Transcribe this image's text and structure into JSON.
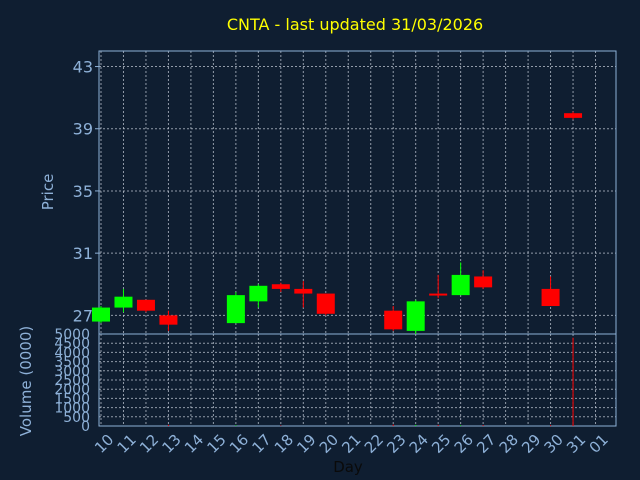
{
  "chart_data": {
    "type": "candlestick",
    "title": "CNTA - last updated 31/03/2026",
    "colors": {
      "background": "#0f1e31",
      "up": "#00ff00",
      "down": "#ff0000",
      "title": "#ffff00",
      "axis_text": "#8eb1d8",
      "frame": "#8eb1d8",
      "grid": "#c8d0dc"
    },
    "price_panel": {
      "ylabel": "Price",
      "ylim": [
        25.8,
        44.0
      ],
      "yticks": [
        27,
        31,
        35,
        39,
        43
      ]
    },
    "volume_panel": {
      "ylabel": "Volume (0000)",
      "ylim": [
        0,
        5000
      ],
      "yticks": [
        0,
        500,
        1000,
        1500,
        2000,
        2500,
        3000,
        3500,
        4000,
        4500,
        5000
      ]
    },
    "x": {
      "xlabel": "Day",
      "tick_labels": [
        "10",
        "11",
        "12",
        "13",
        "14",
        "15",
        "16",
        "17",
        "18",
        "19",
        "20",
        "21",
        "22",
        "23",
        "24",
        "25",
        "26",
        "27",
        "28",
        "29",
        "30",
        "31",
        "01"
      ]
    },
    "candles": [
      {
        "day": "10",
        "open": 26.6,
        "high": 27.6,
        "low": 26.5,
        "close": 27.5
      },
      {
        "day": "11",
        "open": 27.5,
        "high": 28.7,
        "low": 27.2,
        "close": 28.2
      },
      {
        "day": "12",
        "open": 28.0,
        "high": 28.0,
        "low": 27.2,
        "close": 27.3
      },
      {
        "day": "13",
        "open": 27.0,
        "high": 27.3,
        "low": 26.0,
        "close": 26.4
      },
      {
        "day": "16",
        "open": 26.5,
        "high": 28.5,
        "low": 26.5,
        "close": 28.3
      },
      {
        "day": "17",
        "open": 27.9,
        "high": 29.0,
        "low": 27.5,
        "close": 28.9
      },
      {
        "day": "18",
        "open": 29.0,
        "high": 29.1,
        "low": 28.5,
        "close": 28.7
      },
      {
        "day": "19",
        "open": 28.7,
        "high": 29.2,
        "low": 27.5,
        "close": 28.4
      },
      {
        "day": "20",
        "open": 28.4,
        "high": 28.4,
        "low": 27.0,
        "close": 27.1
      },
      {
        "day": "23",
        "open": 27.3,
        "high": 27.6,
        "low": 26.0,
        "close": 26.1
      },
      {
        "day": "24",
        "open": 26.0,
        "high": 28.0,
        "low": 25.8,
        "close": 27.9
      },
      {
        "day": "25",
        "open": 28.4,
        "high": 29.6,
        "low": 28.1,
        "close": 28.3
      },
      {
        "day": "26",
        "open": 28.3,
        "high": 30.4,
        "low": 28.3,
        "close": 29.6
      },
      {
        "day": "27",
        "open": 29.5,
        "high": 29.9,
        "low": 28.7,
        "close": 28.8
      },
      {
        "day": "30",
        "open": 28.7,
        "high": 29.5,
        "low": 27.6,
        "close": 27.6
      },
      {
        "day": "31",
        "open": 40.0,
        "high": 40.1,
        "low": 39.6,
        "close": 39.7
      }
    ],
    "volumes": [
      {
        "day": "13",
        "value": 60,
        "dir": "down"
      },
      {
        "day": "16",
        "value": 40,
        "dir": "up"
      },
      {
        "day": "18",
        "value": 30,
        "dir": "down"
      },
      {
        "day": "23",
        "value": 80,
        "dir": "down"
      },
      {
        "day": "24",
        "value": 60,
        "dir": "up"
      },
      {
        "day": "25",
        "value": 60,
        "dir": "down"
      },
      {
        "day": "26",
        "value": 40,
        "dir": "up"
      },
      {
        "day": "27",
        "value": 50,
        "dir": "down"
      },
      {
        "day": "30",
        "value": 50,
        "dir": "down"
      },
      {
        "day": "31",
        "value": 4800,
        "dir": "down"
      }
    ]
  }
}
